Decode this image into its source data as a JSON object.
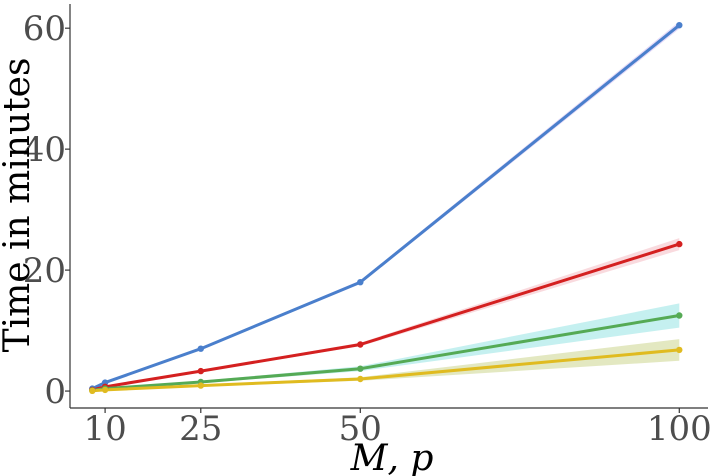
{
  "chart_data": {
    "type": "line",
    "xlabel": "M, p",
    "ylabel": "Time in minutes",
    "x": [
      8,
      10,
      25,
      50,
      100
    ],
    "xticks": [
      10,
      25,
      50,
      100
    ],
    "yticks": [
      0,
      20,
      40,
      60
    ],
    "xlim": [
      4.5,
      104.5
    ],
    "ylim": [
      -2.8,
      64
    ],
    "grid": false,
    "legend": "none",
    "series": [
      {
        "color": "#4a7fcc",
        "band_color": "#d7c8f5",
        "values": [
          0.4,
          1.4,
          7.0,
          18.0,
          60.5
        ],
        "band": [
          0.05,
          0.08,
          0.15,
          0.3,
          0.6
        ]
      },
      {
        "color": "#d42020",
        "band_color": "#f6c6cc",
        "values": [
          0.2,
          0.7,
          3.3,
          7.7,
          24.3
        ],
        "band": [
          0.05,
          0.05,
          0.15,
          0.3,
          1.0
        ]
      },
      {
        "color": "#55aa55",
        "band_color": "#a6e8e8",
        "values": [
          0.1,
          0.4,
          1.5,
          3.7,
          12.5
        ],
        "band": [
          0.05,
          0.05,
          0.2,
          0.4,
          2.0
        ]
      },
      {
        "color": "#e0bb20",
        "band_color": "#d4dca0",
        "values": [
          0.05,
          0.2,
          0.9,
          2.0,
          6.8
        ],
        "band": [
          0.03,
          0.05,
          0.15,
          0.3,
          1.8
        ]
      }
    ]
  }
}
